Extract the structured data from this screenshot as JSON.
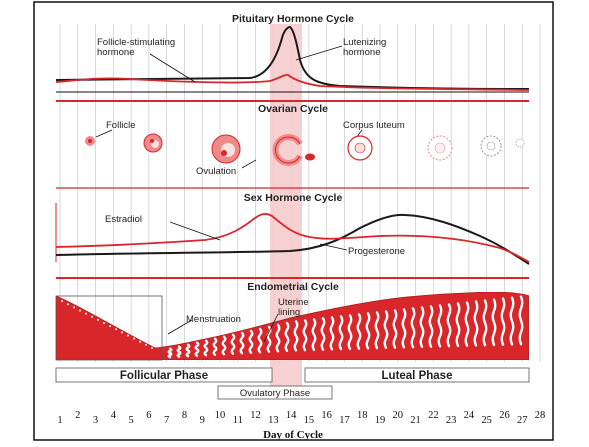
{
  "sections": {
    "pituitary": {
      "title": "Pituitary Hormone Cycle",
      "fsh_label_line1": "Follicle-stimulating",
      "fsh_label_line2": "hormone",
      "lh_label_line1": "Lutenizing",
      "lh_label_line2": "hormone"
    },
    "ovarian": {
      "title": "Ovarian Cycle",
      "follicle_label": "Follicle",
      "corpus_label": "Corpus luteum",
      "ovulation_label": "Ovulation"
    },
    "sex_hormone": {
      "title": "Sex Hormone Cycle",
      "estradiol_label": "Estradiol",
      "progesterone_label": "Progesterone"
    },
    "endometrial": {
      "title": "Endometrial Cycle",
      "menstruation_label": "Menstruation",
      "uterine_label_line1": "Uterine",
      "uterine_label_line2": "lining"
    }
  },
  "phases": {
    "follicular": "Follicular Phase",
    "luteal": "Luteal Phase",
    "ovulatory": "Ovulatory Phase"
  },
  "days": [
    "1",
    "2",
    "3",
    "4",
    "5",
    "6",
    "7",
    "8",
    "9",
    "10",
    "11",
    "12",
    "13",
    "14",
    "15",
    "16",
    "17",
    "18",
    "19",
    "20",
    "21",
    "22",
    "23",
    "24",
    "25",
    "26",
    "27",
    "28"
  ],
  "axis_label": "Day of Cycle",
  "colors": {
    "red": "#d8262a",
    "pink_fill": "#f08a8a",
    "light_pink": "#f6c9c9",
    "dark_line": "#1a1a1a"
  }
}
